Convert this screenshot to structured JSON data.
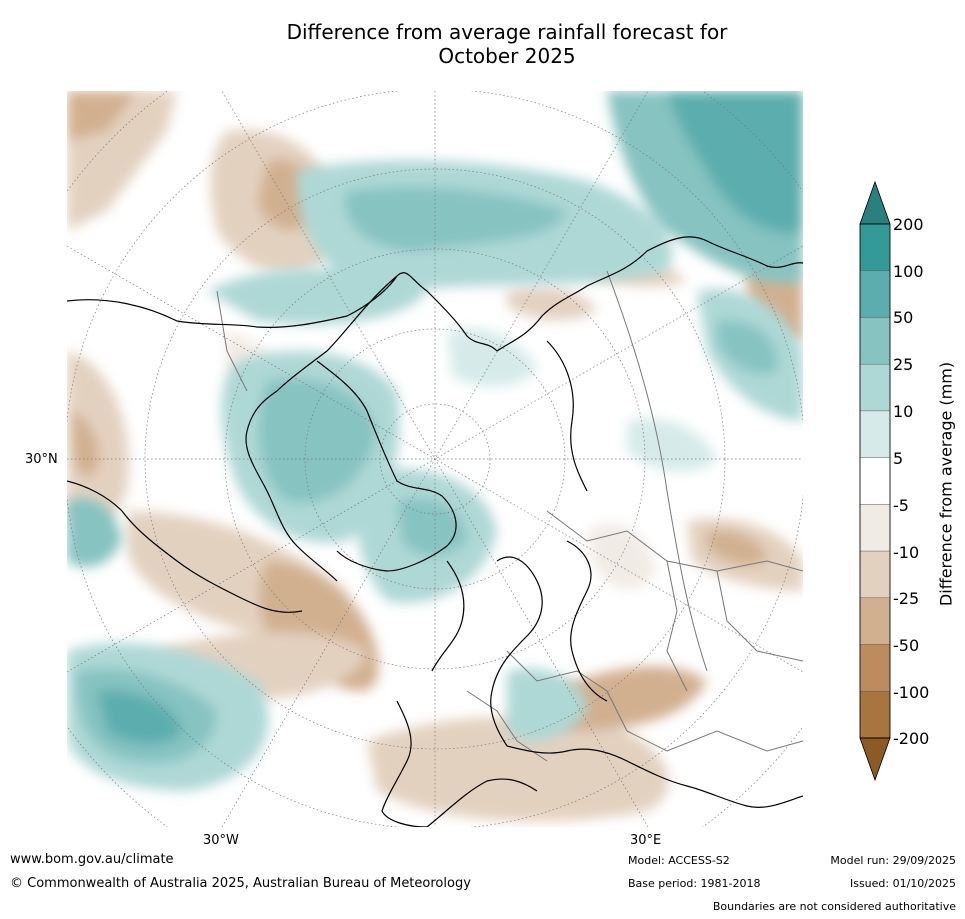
{
  "title_line1": "Difference from average rainfall forecast for",
  "title_line2": "October 2025",
  "map_labels": {
    "lat_30n": "30°N",
    "lon_30w": "30°W",
    "lon_30e": "30°E"
  },
  "colorbar": {
    "label": "Difference from average (mm)",
    "ticks": [
      "200",
      "100",
      "50",
      "25",
      "10",
      "5",
      "-5",
      "-10",
      "-25",
      "-50",
      "-100",
      "-200"
    ],
    "colors": [
      "#2a7f7f",
      "#339a98",
      "#5cadad",
      "#86c3c1",
      "#aed8d6",
      "#d6ebe9",
      "#ffffff",
      "#f1ebe5",
      "#e3d1c0",
      "#d1b090",
      "#bc8b5e",
      "#a87440",
      "#8b5a25"
    ]
  },
  "footer": {
    "url": "www.bom.gov.au/climate",
    "copyright": "© Commonwealth of Australia 2025, Australian Bureau of Meteorology",
    "model": "Model: ACCESS-S2",
    "base_period": "Base period: 1981-2018",
    "model_run": "Model run: 29/09/2025",
    "issued": "Issued: 01/10/2025",
    "disclaimer": "Boundaries are not considered authoritative"
  }
}
